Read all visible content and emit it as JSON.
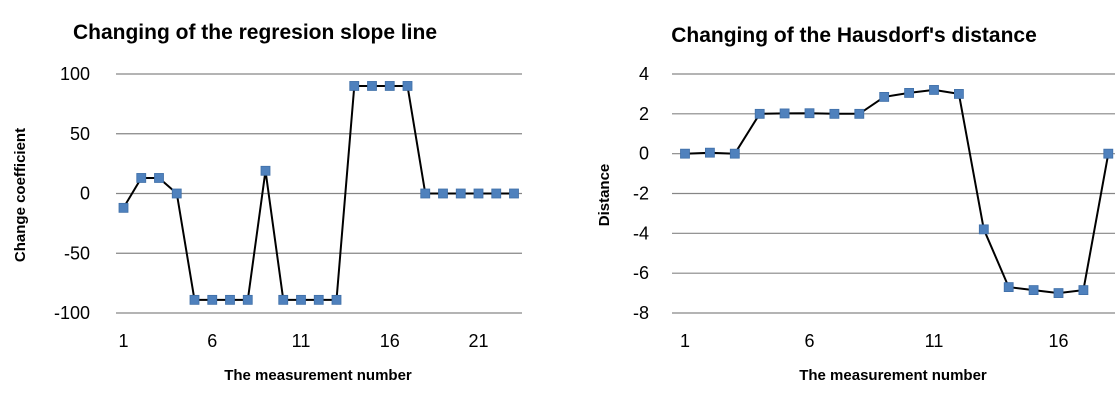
{
  "chart_data": [
    {
      "type": "line",
      "title": "Changing of the regresion slope line",
      "xlabel": "The measurement number",
      "ylabel": "Change coefficient",
      "ylim": [
        -100,
        100
      ],
      "yticks": [
        100,
        50,
        0,
        -50,
        -100
      ],
      "xticks": [
        1,
        6,
        11,
        16,
        21
      ],
      "x": [
        1,
        2,
        3,
        4,
        5,
        6,
        7,
        8,
        9,
        10,
        11,
        12,
        13,
        14,
        15,
        16,
        17,
        18,
        19,
        20,
        21,
        22,
        23
      ],
      "series": [
        {
          "values": [
            -12,
            13,
            13,
            0,
            -89,
            -89,
            -89,
            -89,
            19,
            -89,
            -89,
            -89,
            -89,
            90,
            90,
            90,
            90,
            0,
            0,
            0,
            0,
            0,
            0
          ]
        }
      ],
      "grid": true,
      "colors": {
        "line": "#000000",
        "marker": "#4f81bd",
        "grid": "#868686"
      }
    },
    {
      "type": "line",
      "title": "Changing of the Hausdorf's distance",
      "xlabel": "The measurement number",
      "ylabel": "Distance",
      "ylim": [
        -8,
        4
      ],
      "yticks": [
        4,
        2,
        0,
        -2,
        -4,
        -6,
        -8
      ],
      "xticks": [
        1,
        6,
        11,
        16
      ],
      "x": [
        1,
        2,
        3,
        4,
        5,
        6,
        7,
        8,
        9,
        10,
        11,
        12,
        13,
        14,
        15,
        16,
        17,
        18
      ],
      "series": [
        {
          "values": [
            0,
            0.05,
            0,
            2,
            2.02,
            2.03,
            2,
            2,
            2.85,
            3.05,
            3.2,
            3,
            -3.8,
            -6.7,
            -6.85,
            -7,
            -6.85,
            0
          ]
        }
      ],
      "grid": true,
      "colors": {
        "line": "#000000",
        "marker": "#4f81bd",
        "grid": "#868686"
      }
    }
  ]
}
